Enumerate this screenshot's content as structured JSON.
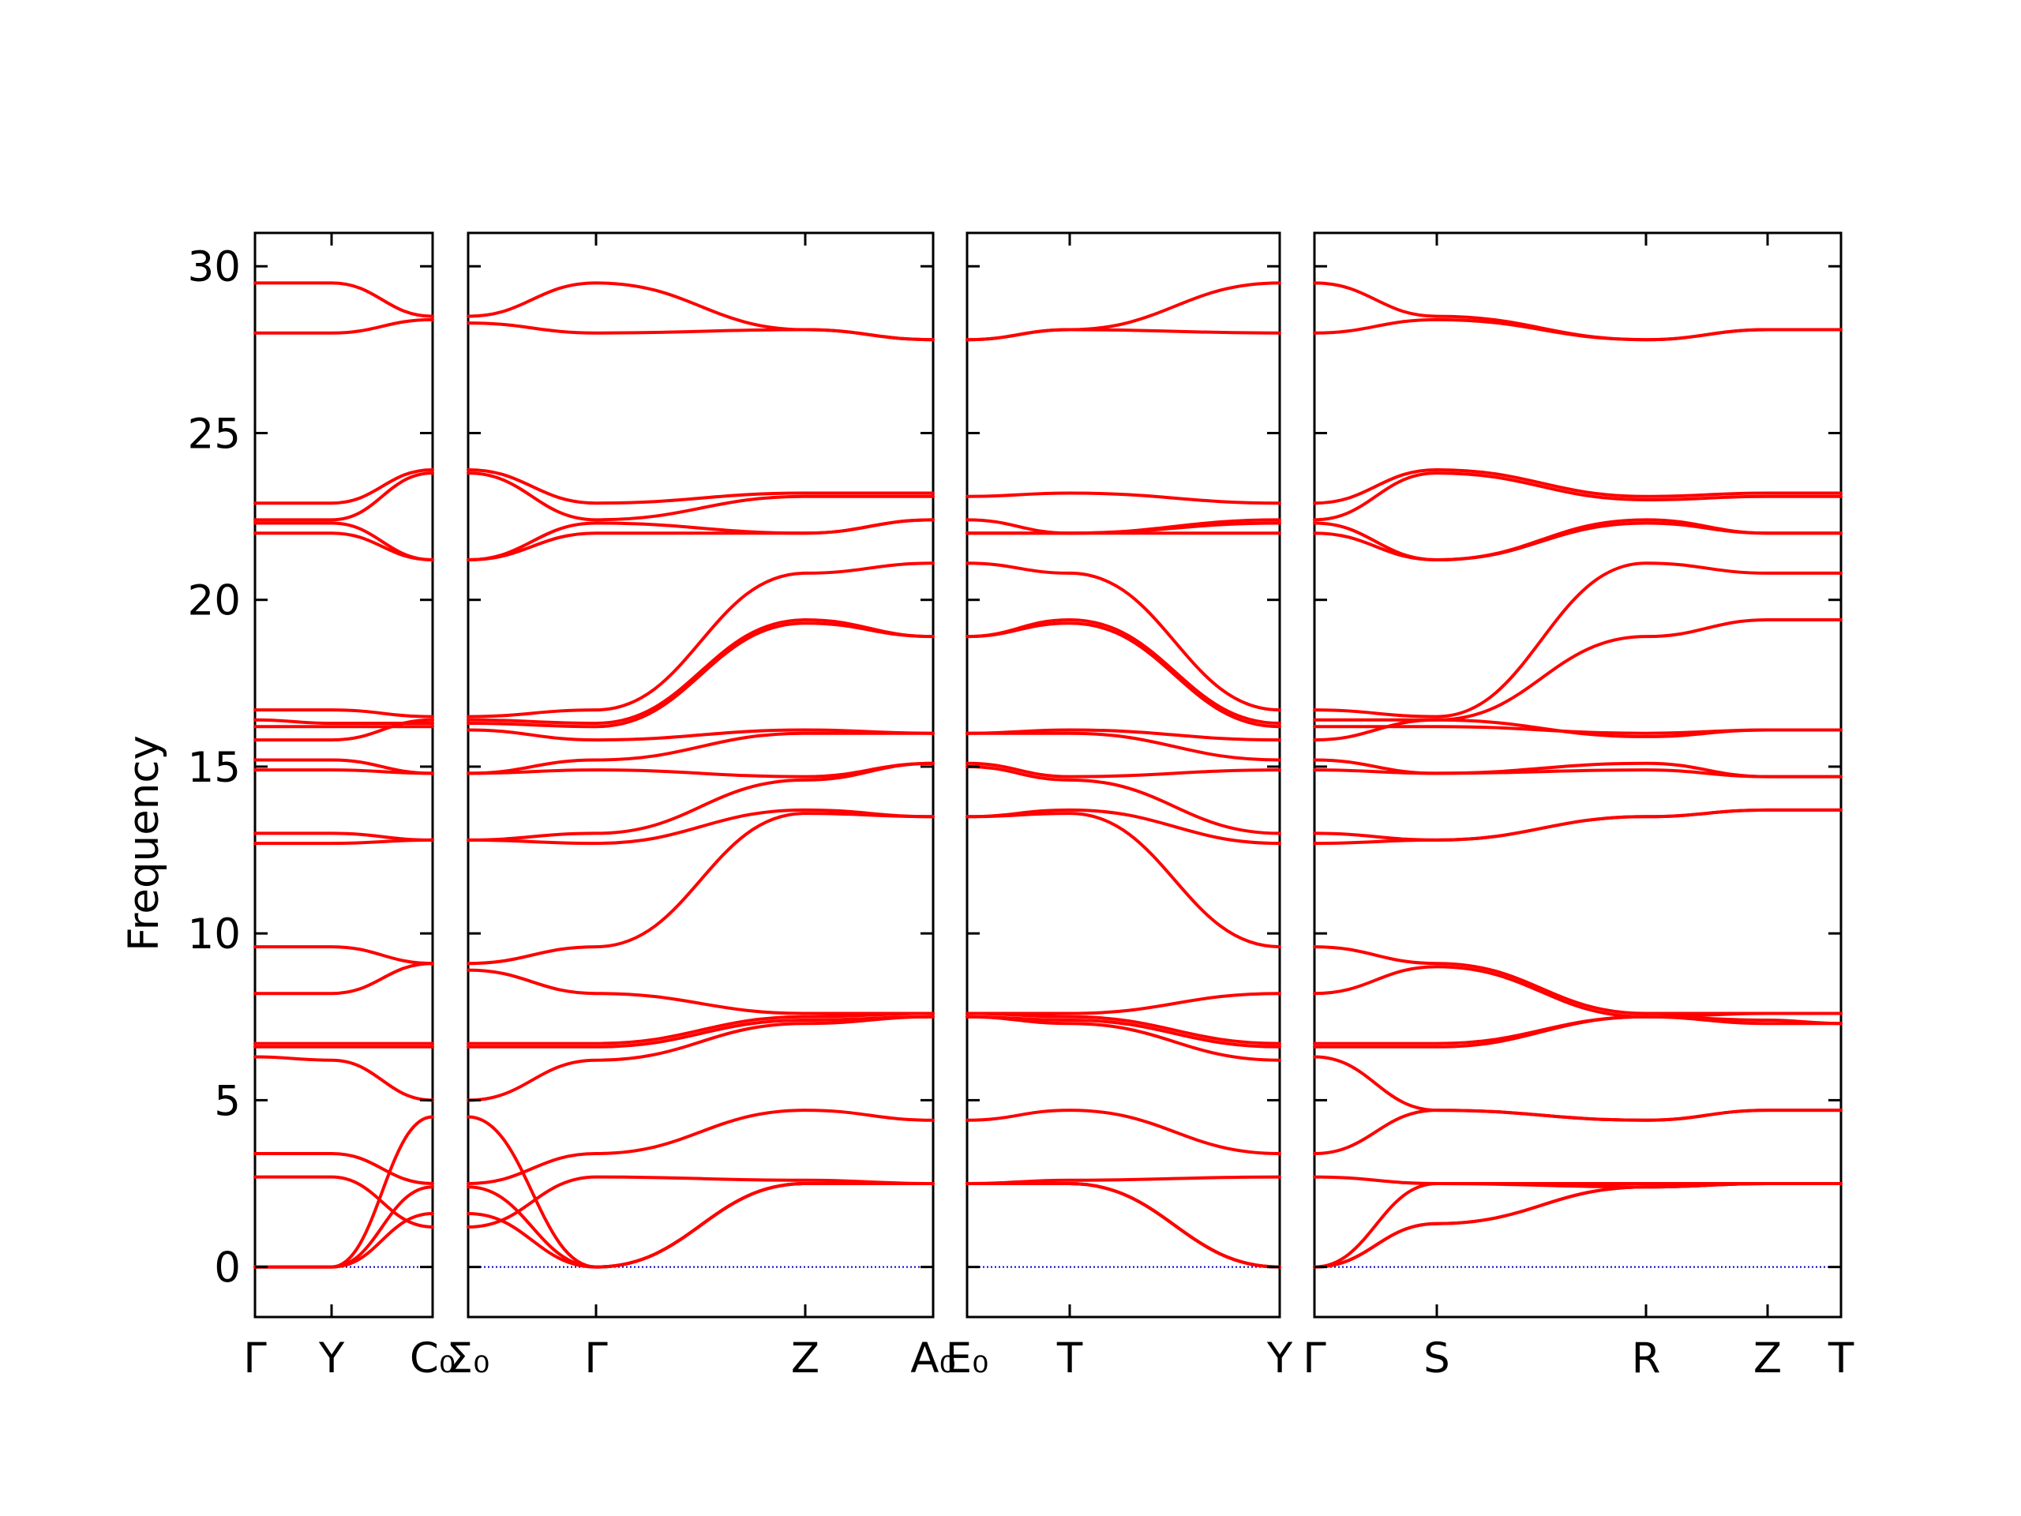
{
  "chart_data": {
    "type": "line",
    "ylabel": "Frequency",
    "ylim": [
      -1.5,
      31
    ],
    "yticks": [
      0,
      5,
      10,
      15,
      20,
      25,
      30
    ],
    "grid": false,
    "legend": "none",
    "colors": {
      "bands": "#ff0000",
      "zero_line": "#0000cc",
      "axes": "#000000"
    },
    "panels": [
      {
        "name": "panel-1",
        "segments": [
          "Γ-Y",
          "Y-C0"
        ],
        "xticks": [
          "Γ",
          "Y",
          "C₀"
        ],
        "series": [
          {
            "name": "b1",
            "values": [
              29.5,
              29.5,
              28.5
            ]
          },
          {
            "name": "b2",
            "values": [
              28.0,
              28.0,
              28.4
            ]
          },
          {
            "name": "b3",
            "values": [
              22.9,
              22.9,
              23.9
            ]
          },
          {
            "name": "b4",
            "values": [
              22.4,
              22.4,
              23.8
            ]
          },
          {
            "name": "b5",
            "values": [
              22.3,
              22.3,
              21.2
            ]
          },
          {
            "name": "b6",
            "values": [
              22.0,
              22.0,
              21.2
            ]
          },
          {
            "name": "b7",
            "values": [
              16.7,
              16.7,
              16.5
            ]
          },
          {
            "name": "b8",
            "values": [
              16.4,
              16.3,
              16.3
            ]
          },
          {
            "name": "b9",
            "values": [
              16.2,
              16.2,
              16.2
            ]
          },
          {
            "name": "b10",
            "values": [
              15.8,
              15.8,
              16.4
            ]
          },
          {
            "name": "b11",
            "values": [
              15.2,
              15.2,
              14.8
            ]
          },
          {
            "name": "b12",
            "values": [
              14.9,
              14.9,
              14.8
            ]
          },
          {
            "name": "b13",
            "values": [
              13.0,
              13.0,
              12.8
            ]
          },
          {
            "name": "b14",
            "values": [
              12.7,
              12.7,
              12.8
            ]
          },
          {
            "name": "b15",
            "values": [
              9.6,
              9.6,
              9.1
            ]
          },
          {
            "name": "b16",
            "values": [
              8.2,
              8.2,
              9.1
            ]
          },
          {
            "name": "b17",
            "values": [
              6.7,
              6.7,
              6.7
            ]
          },
          {
            "name": "b18",
            "values": [
              6.6,
              6.6,
              6.6
            ]
          },
          {
            "name": "b19",
            "values": [
              6.3,
              6.2,
              5.0
            ]
          },
          {
            "name": "b20",
            "values": [
              3.4,
              3.4,
              2.5
            ]
          },
          {
            "name": "b21",
            "values": [
              2.7,
              2.7,
              1.2
            ]
          },
          {
            "name": "b22",
            "values": [
              0.0,
              0.0,
              4.5
            ]
          },
          {
            "name": "b23",
            "values": [
              0.0,
              0.0,
              2.4
            ]
          },
          {
            "name": "b24",
            "values": [
              0.0,
              0.0,
              1.6
            ]
          }
        ]
      },
      {
        "name": "panel-2",
        "segments": [
          "Σ0-Γ",
          "Γ-Z",
          "Z-A0"
        ],
        "xticks": [
          "Σ₀",
          "Γ",
          "Z",
          "A₀"
        ],
        "series": [
          {
            "name": "b1",
            "values": [
              28.5,
              29.5,
              28.1,
              27.8
            ]
          },
          {
            "name": "b2",
            "values": [
              28.3,
              28.0,
              28.1,
              27.8
            ]
          },
          {
            "name": "b3",
            "values": [
              23.9,
              22.9,
              23.2,
              23.2
            ]
          },
          {
            "name": "b4",
            "values": [
              23.8,
              22.4,
              23.1,
              23.1
            ]
          },
          {
            "name": "b5",
            "values": [
              21.2,
              22.3,
              22.0,
              22.4
            ]
          },
          {
            "name": "b6",
            "values": [
              21.2,
              22.0,
              22.0,
              22.4
            ]
          },
          {
            "name": "b7",
            "values": [
              16.5,
              16.7,
              20.8,
              21.1
            ]
          },
          {
            "name": "b8",
            "values": [
              16.4,
              16.3,
              19.4,
              18.9
            ]
          },
          {
            "name": "b9",
            "values": [
              16.3,
              16.2,
              19.3,
              18.9
            ]
          },
          {
            "name": "b10",
            "values": [
              16.1,
              15.8,
              16.1,
              16.0
            ]
          },
          {
            "name": "b11",
            "values": [
              14.8,
              15.2,
              16.0,
              16.0
            ]
          },
          {
            "name": "b12",
            "values": [
              14.8,
              14.9,
              14.7,
              15.1
            ]
          },
          {
            "name": "b13",
            "values": [
              12.8,
              13.0,
              14.6,
              15.1
            ]
          },
          {
            "name": "b14",
            "values": [
              12.8,
              12.7,
              13.7,
              13.5
            ]
          },
          {
            "name": "b15",
            "values": [
              9.1,
              9.6,
              13.6,
              13.5
            ]
          },
          {
            "name": "b16",
            "values": [
              8.9,
              8.2,
              7.6,
              7.6
            ]
          },
          {
            "name": "b17",
            "values": [
              6.7,
              6.7,
              7.5,
              7.6
            ]
          },
          {
            "name": "b18",
            "values": [
              6.6,
              6.6,
              7.4,
              7.5
            ]
          },
          {
            "name": "b19",
            "values": [
              5.0,
              6.2,
              7.3,
              7.5
            ]
          },
          {
            "name": "b20",
            "values": [
              2.5,
              3.4,
              4.7,
              4.4
            ]
          },
          {
            "name": "b21",
            "values": [
              1.2,
              2.7,
              2.6,
              2.5
            ]
          },
          {
            "name": "b22",
            "values": [
              4.5,
              0.0,
              2.5,
              2.5
            ]
          },
          {
            "name": "b23",
            "values": [
              2.4,
              0.0,
              2.5,
              2.5
            ]
          },
          {
            "name": "b24",
            "values": [
              1.6,
              0.0,
              2.5,
              2.5
            ]
          }
        ]
      },
      {
        "name": "panel-3",
        "segments": [
          "E0-T",
          "T-Y"
        ],
        "xticks": [
          "E₀",
          "T",
          "Y"
        ],
        "series": [
          {
            "name": "b1",
            "values": [
              27.8,
              28.1,
              29.5
            ]
          },
          {
            "name": "b2",
            "values": [
              27.8,
              28.1,
              28.0
            ]
          },
          {
            "name": "b3",
            "values": [
              23.1,
              23.2,
              22.9
            ]
          },
          {
            "name": "b4",
            "values": [
              22.4,
              22.0,
              22.4
            ]
          },
          {
            "name": "b5",
            "values": [
              22.0,
              22.0,
              22.3
            ]
          },
          {
            "name": "b6",
            "values": [
              22.0,
              22.0,
              22.0
            ]
          },
          {
            "name": "b7",
            "values": [
              21.1,
              20.8,
              16.7
            ]
          },
          {
            "name": "b8",
            "values": [
              18.9,
              19.4,
              16.3
            ]
          },
          {
            "name": "b9",
            "values": [
              18.9,
              19.3,
              16.2
            ]
          },
          {
            "name": "b10",
            "values": [
              16.0,
              16.1,
              15.8
            ]
          },
          {
            "name": "b11",
            "values": [
              16.0,
              16.0,
              15.2
            ]
          },
          {
            "name": "b12",
            "values": [
              15.1,
              14.7,
              14.9
            ]
          },
          {
            "name": "b13",
            "values": [
              15.0,
              14.6,
              13.0
            ]
          },
          {
            "name": "b14",
            "values": [
              13.5,
              13.7,
              12.7
            ]
          },
          {
            "name": "b15",
            "values": [
              13.5,
              13.6,
              9.6
            ]
          },
          {
            "name": "b16",
            "values": [
              7.6,
              7.6,
              8.2
            ]
          },
          {
            "name": "b17",
            "values": [
              7.6,
              7.5,
              6.7
            ]
          },
          {
            "name": "b18",
            "values": [
              7.5,
              7.4,
              6.6
            ]
          },
          {
            "name": "b19",
            "values": [
              7.5,
              7.3,
              6.2
            ]
          },
          {
            "name": "b20",
            "values": [
              4.4,
              4.7,
              3.4
            ]
          },
          {
            "name": "b21",
            "values": [
              2.5,
              2.6,
              2.7
            ]
          },
          {
            "name": "b22",
            "values": [
              2.5,
              2.5,
              0.0
            ]
          },
          {
            "name": "b23",
            "values": [
              2.5,
              2.5,
              0.0
            ]
          },
          {
            "name": "b24",
            "values": [
              2.5,
              2.5,
              0.0
            ]
          }
        ]
      },
      {
        "name": "panel-4",
        "segments": [
          "Γ-S",
          "S-R",
          "R-Z",
          "Z-T"
        ],
        "xticks": [
          "Γ",
          "S",
          "R",
          "Z",
          "T"
        ],
        "series": [
          {
            "name": "b1",
            "values": [
              29.5,
              28.5,
              27.8,
              28.1,
              28.1
            ]
          },
          {
            "name": "b2",
            "values": [
              28.0,
              28.4,
              27.8,
              28.1,
              28.1
            ]
          },
          {
            "name": "b3",
            "values": [
              22.9,
              23.9,
              23.1,
              23.2,
              23.2
            ]
          },
          {
            "name": "b4",
            "values": [
              22.4,
              23.8,
              23.0,
              23.1,
              23.1
            ]
          },
          {
            "name": "b5",
            "values": [
              22.3,
              21.2,
              22.4,
              22.0,
              22.0
            ]
          },
          {
            "name": "b6",
            "values": [
              22.0,
              21.2,
              22.3,
              22.0,
              22.0
            ]
          },
          {
            "name": "b7",
            "values": [
              16.7,
              16.5,
              21.1,
              20.8,
              20.8
            ]
          },
          {
            "name": "b8",
            "values": [
              16.4,
              16.4,
              18.9,
              19.4,
              19.4
            ]
          },
          {
            "name": "b9",
            "values": [
              16.2,
              16.2,
              16.0,
              16.1,
              16.1
            ]
          },
          {
            "name": "b10",
            "values": [
              15.8,
              16.4,
              15.9,
              16.1,
              16.1
            ]
          },
          {
            "name": "b11",
            "values": [
              15.2,
              14.8,
              15.1,
              14.7,
              14.7
            ]
          },
          {
            "name": "b12",
            "values": [
              14.9,
              14.8,
              14.9,
              14.7,
              14.7
            ]
          },
          {
            "name": "b13",
            "values": [
              13.0,
              12.8,
              13.5,
              13.7,
              13.7
            ]
          },
          {
            "name": "b14",
            "values": [
              12.7,
              12.8,
              13.5,
              13.7,
              13.7
            ]
          },
          {
            "name": "b15",
            "values": [
              9.6,
              9.1,
              7.6,
              7.6,
              7.6
            ]
          },
          {
            "name": "b16",
            "values": [
              8.2,
              9.0,
              7.5,
              7.6,
              7.6
            ]
          },
          {
            "name": "b17",
            "values": [
              6.7,
              6.7,
              7.5,
              7.4,
              7.3
            ]
          },
          {
            "name": "b18",
            "values": [
              6.6,
              6.6,
              7.5,
              7.3,
              7.3
            ]
          },
          {
            "name": "b19",
            "values": [
              6.3,
              4.7,
              4.4,
              4.7,
              4.7
            ]
          },
          {
            "name": "b20",
            "values": [
              3.4,
              4.7,
              4.4,
              4.7,
              4.7
            ]
          },
          {
            "name": "b21",
            "values": [
              2.7,
              2.5,
              2.5,
              2.5,
              2.5
            ]
          },
          {
            "name": "b22",
            "values": [
              0.0,
              2.5,
              2.4,
              2.5,
              2.5
            ]
          },
          {
            "name": "b23",
            "values": [
              0.0,
              1.3,
              2.4,
              2.5,
              2.5
            ]
          },
          {
            "name": "b24",
            "values": [
              0.0,
              1.3,
              2.4,
              2.5,
              2.5
            ]
          }
        ]
      }
    ]
  }
}
